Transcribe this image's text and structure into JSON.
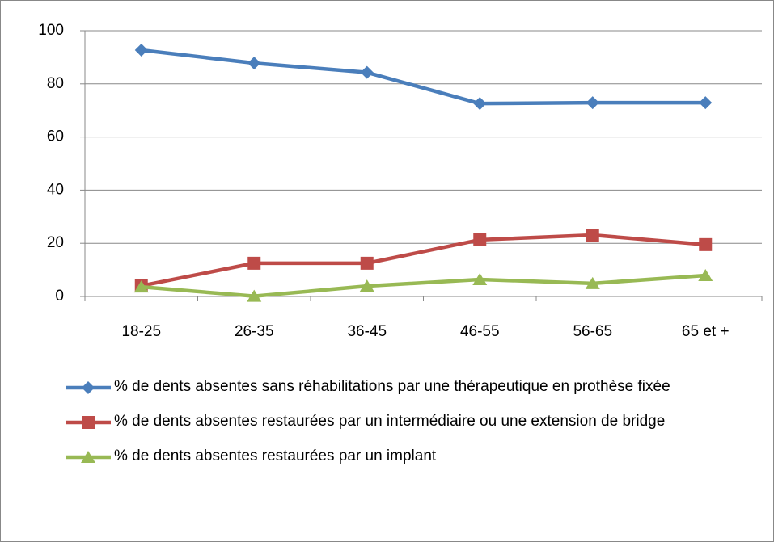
{
  "chart_data": {
    "type": "line",
    "categories": [
      "18-25",
      "26-35",
      "36-45",
      "46-55",
      "56-65",
      "65 et +"
    ],
    "series": [
      {
        "name": "% de dents absentes sans réhabilitations par une thérapeutique en prothèse fixée",
        "color": "#4a7ebb",
        "marker": "diamond",
        "values": [
          92.7,
          87.8,
          84.3,
          72.6,
          72.9,
          72.9
        ]
      },
      {
        "name": "% de dents absentes restaurées par un intermédiaire ou une extension de bridge",
        "color": "#be4b48",
        "marker": "square",
        "values": [
          4.0,
          12.5,
          12.5,
          21.3,
          23.1,
          19.5
        ]
      },
      {
        "name": "% de dents absentes restaurées par un implant",
        "color": "#98b954",
        "marker": "triangle",
        "values": [
          3.6,
          0.1,
          3.9,
          6.4,
          4.9,
          7.9
        ]
      }
    ],
    "ylim": [
      0,
      100
    ],
    "yticks": [
      0,
      20,
      40,
      60,
      80,
      100
    ],
    "grid": true,
    "legend": "bottom"
  }
}
